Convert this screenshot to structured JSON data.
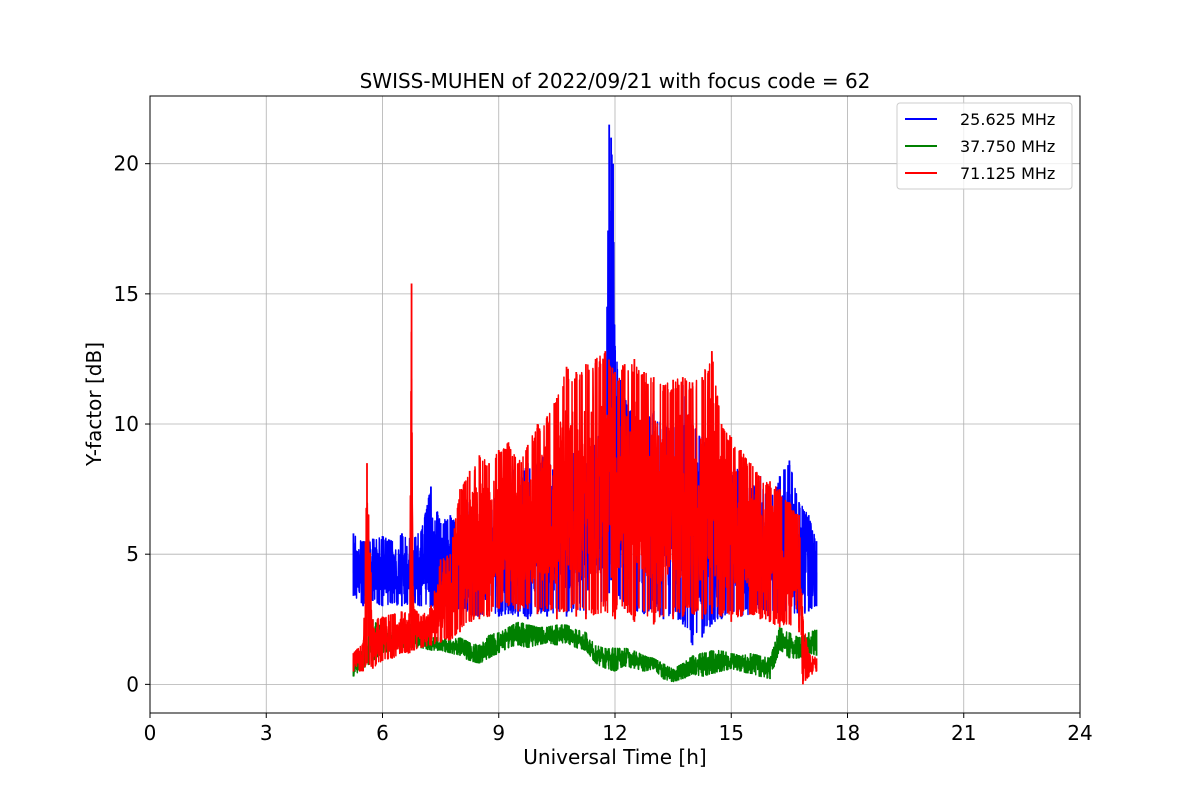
{
  "chart_data": {
    "type": "line",
    "title": "SWISS-MUHEN of 2022/09/21 with focus code = 62",
    "xlabel": "Universal Time [h]",
    "ylabel": "Y-factor [dB]",
    "xlim": [
      0,
      24
    ],
    "ylim": [
      -1.1,
      22.6
    ],
    "xticks": [
      "0",
      "3",
      "6",
      "9",
      "12",
      "15",
      "18",
      "21",
      "24"
    ],
    "yticks": [
      "0",
      "5",
      "10",
      "15",
      "20"
    ],
    "grid": true,
    "legend_position": "top-right",
    "series": [
      {
        "name": "25.625 MHz",
        "color": "#0000ff",
        "x": [
          5.25,
          5.5,
          5.75,
          6.0,
          6.25,
          6.5,
          6.75,
          7.0,
          7.25,
          7.5,
          7.75,
          8.0,
          8.25,
          8.5,
          8.75,
          9.0,
          9.25,
          9.5,
          9.75,
          10.0,
          10.25,
          10.5,
          10.75,
          11.0,
          11.25,
          11.5,
          11.75,
          11.85,
          11.9,
          11.95,
          12.0,
          12.25,
          12.5,
          12.75,
          13.0,
          13.25,
          13.5,
          13.75,
          14.0,
          14.25,
          14.5,
          14.75,
          15.0,
          15.25,
          15.5,
          15.75,
          16.0,
          16.25,
          16.5,
          16.75,
          17.0,
          17.2
        ],
        "lower": [
          3.4,
          3.0,
          3.2,
          3.0,
          3.1,
          3.0,
          3.1,
          3.0,
          2.9,
          3.0,
          2.8,
          2.9,
          2.7,
          2.6,
          2.8,
          2.6,
          2.7,
          2.6,
          2.5,
          2.7,
          2.6,
          2.8,
          2.6,
          2.9,
          2.7,
          2.8,
          3.0,
          3.5,
          4.0,
          3.5,
          3.0,
          2.9,
          2.8,
          2.7,
          2.9,
          2.5,
          2.6,
          2.3,
          1.5,
          1.8,
          2.3,
          2.5,
          2.8,
          2.6,
          2.7,
          2.9,
          2.6,
          2.7,
          2.5,
          2.6,
          2.8,
          3.0
        ],
        "upper": [
          5.8,
          5.5,
          5.6,
          5.7,
          5.5,
          5.8,
          5.6,
          5.9,
          7.6,
          6.2,
          6.5,
          6.0,
          7.0,
          6.0,
          6.5,
          7.5,
          8.5,
          8.0,
          8.5,
          8.5,
          9.0,
          8.0,
          8.5,
          9.0,
          8.5,
          9.5,
          10.0,
          21.5,
          21.0,
          20.0,
          13.0,
          11.0,
          10.5,
          10.0,
          10.5,
          10.0,
          10.0,
          11.5,
          10.0,
          9.5,
          9.0,
          8.5,
          8.0,
          8.5,
          7.5,
          8.0,
          7.0,
          8.0,
          8.6,
          7.0,
          6.5,
          5.5
        ]
      },
      {
        "name": "37.750 MHz",
        "color": "#008000",
        "x": [
          5.25,
          5.5,
          5.75,
          6.0,
          6.25,
          6.5,
          6.75,
          7.0,
          7.25,
          7.5,
          7.75,
          8.0,
          8.25,
          8.5,
          8.75,
          9.0,
          9.25,
          9.5,
          9.75,
          10.0,
          10.25,
          10.5,
          10.75,
          11.0,
          11.25,
          11.5,
          11.75,
          12.0,
          12.25,
          12.5,
          12.75,
          13.0,
          13.25,
          13.5,
          13.75,
          14.0,
          14.25,
          14.5,
          14.75,
          15.0,
          15.25,
          15.5,
          15.75,
          16.0,
          16.25,
          16.5,
          16.75,
          17.0,
          17.2
        ],
        "lower": [
          0.3,
          0.6,
          0.9,
          1.2,
          1.3,
          1.4,
          1.4,
          1.4,
          1.3,
          1.3,
          1.2,
          1.1,
          0.9,
          0.8,
          1.0,
          1.2,
          1.4,
          1.5,
          1.4,
          1.5,
          1.6,
          1.5,
          1.6,
          1.4,
          1.3,
          0.8,
          0.6,
          0.5,
          0.7,
          0.6,
          0.5,
          0.6,
          0.2,
          0.1,
          0.2,
          0.4,
          0.3,
          0.4,
          0.5,
          0.6,
          0.5,
          0.4,
          0.3,
          0.2,
          1.3,
          1.0,
          1.0,
          1.2,
          1.1
        ],
        "upper": [
          1.0,
          1.3,
          2.5,
          2.2,
          2.0,
          2.2,
          2.3,
          2.0,
          1.8,
          1.8,
          1.7,
          1.8,
          1.6,
          1.5,
          1.9,
          2.0,
          2.2,
          2.4,
          2.3,
          2.2,
          2.2,
          2.3,
          2.3,
          2.1,
          2.0,
          1.5,
          1.4,
          1.4,
          1.4,
          1.3,
          1.1,
          1.0,
          0.8,
          0.6,
          0.8,
          1.1,
          1.2,
          1.3,
          1.3,
          1.2,
          1.1,
          1.2,
          1.1,
          1.0,
          2.2,
          2.0,
          1.8,
          2.0,
          2.1
        ]
      },
      {
        "name": "71.125 MHz",
        "color": "#ff0000",
        "x": [
          5.25,
          5.5,
          5.6,
          5.75,
          6.0,
          6.25,
          6.5,
          6.7,
          6.75,
          6.8,
          7.0,
          7.25,
          7.5,
          7.75,
          8.0,
          8.25,
          8.5,
          8.75,
          9.0,
          9.25,
          9.5,
          9.75,
          10.0,
          10.25,
          10.5,
          10.75,
          11.0,
          11.25,
          11.5,
          11.75,
          12.0,
          12.25,
          12.5,
          12.75,
          13.0,
          13.25,
          13.5,
          13.75,
          14.0,
          14.25,
          14.5,
          14.75,
          15.0,
          15.25,
          15.5,
          15.75,
          16.0,
          16.25,
          16.5,
          16.75,
          16.85,
          17.0,
          17.2
        ],
        "lower": [
          0.5,
          0.5,
          0.8,
          0.6,
          0.9,
          1.0,
          1.2,
          1.2,
          1.3,
          1.3,
          1.4,
          1.5,
          1.6,
          1.7,
          2.0,
          2.4,
          2.5,
          2.6,
          2.9,
          3.0,
          2.8,
          2.9,
          2.7,
          2.9,
          2.5,
          2.8,
          2.6,
          2.5,
          2.7,
          2.8,
          2.5,
          2.9,
          2.4,
          2.8,
          2.3,
          2.6,
          2.5,
          2.6,
          2.7,
          2.5,
          2.7,
          2.6,
          2.4,
          2.6,
          2.7,
          2.5,
          2.4,
          2.2,
          2.3,
          2.0,
          0.0,
          0.3,
          0.5
        ],
        "upper": [
          1.2,
          1.6,
          8.5,
          2.5,
          2.6,
          2.7,
          2.8,
          2.7,
          15.4,
          3.0,
          2.6,
          3.0,
          4.8,
          5.0,
          7.5,
          8.2,
          8.8,
          8.5,
          9.0,
          9.3,
          8.5,
          9.2,
          10.0,
          10.3,
          11.0,
          12.2,
          12.0,
          12.3,
          12.5,
          12.8,
          12.0,
          12.3,
          12.5,
          12.0,
          11.8,
          11.5,
          11.7,
          11.8,
          11.6,
          11.8,
          12.8,
          10.0,
          9.5,
          9.0,
          8.5,
          8.0,
          7.8,
          7.5,
          7.0,
          6.5,
          2.5,
          1.2,
          1.0
        ]
      }
    ]
  }
}
